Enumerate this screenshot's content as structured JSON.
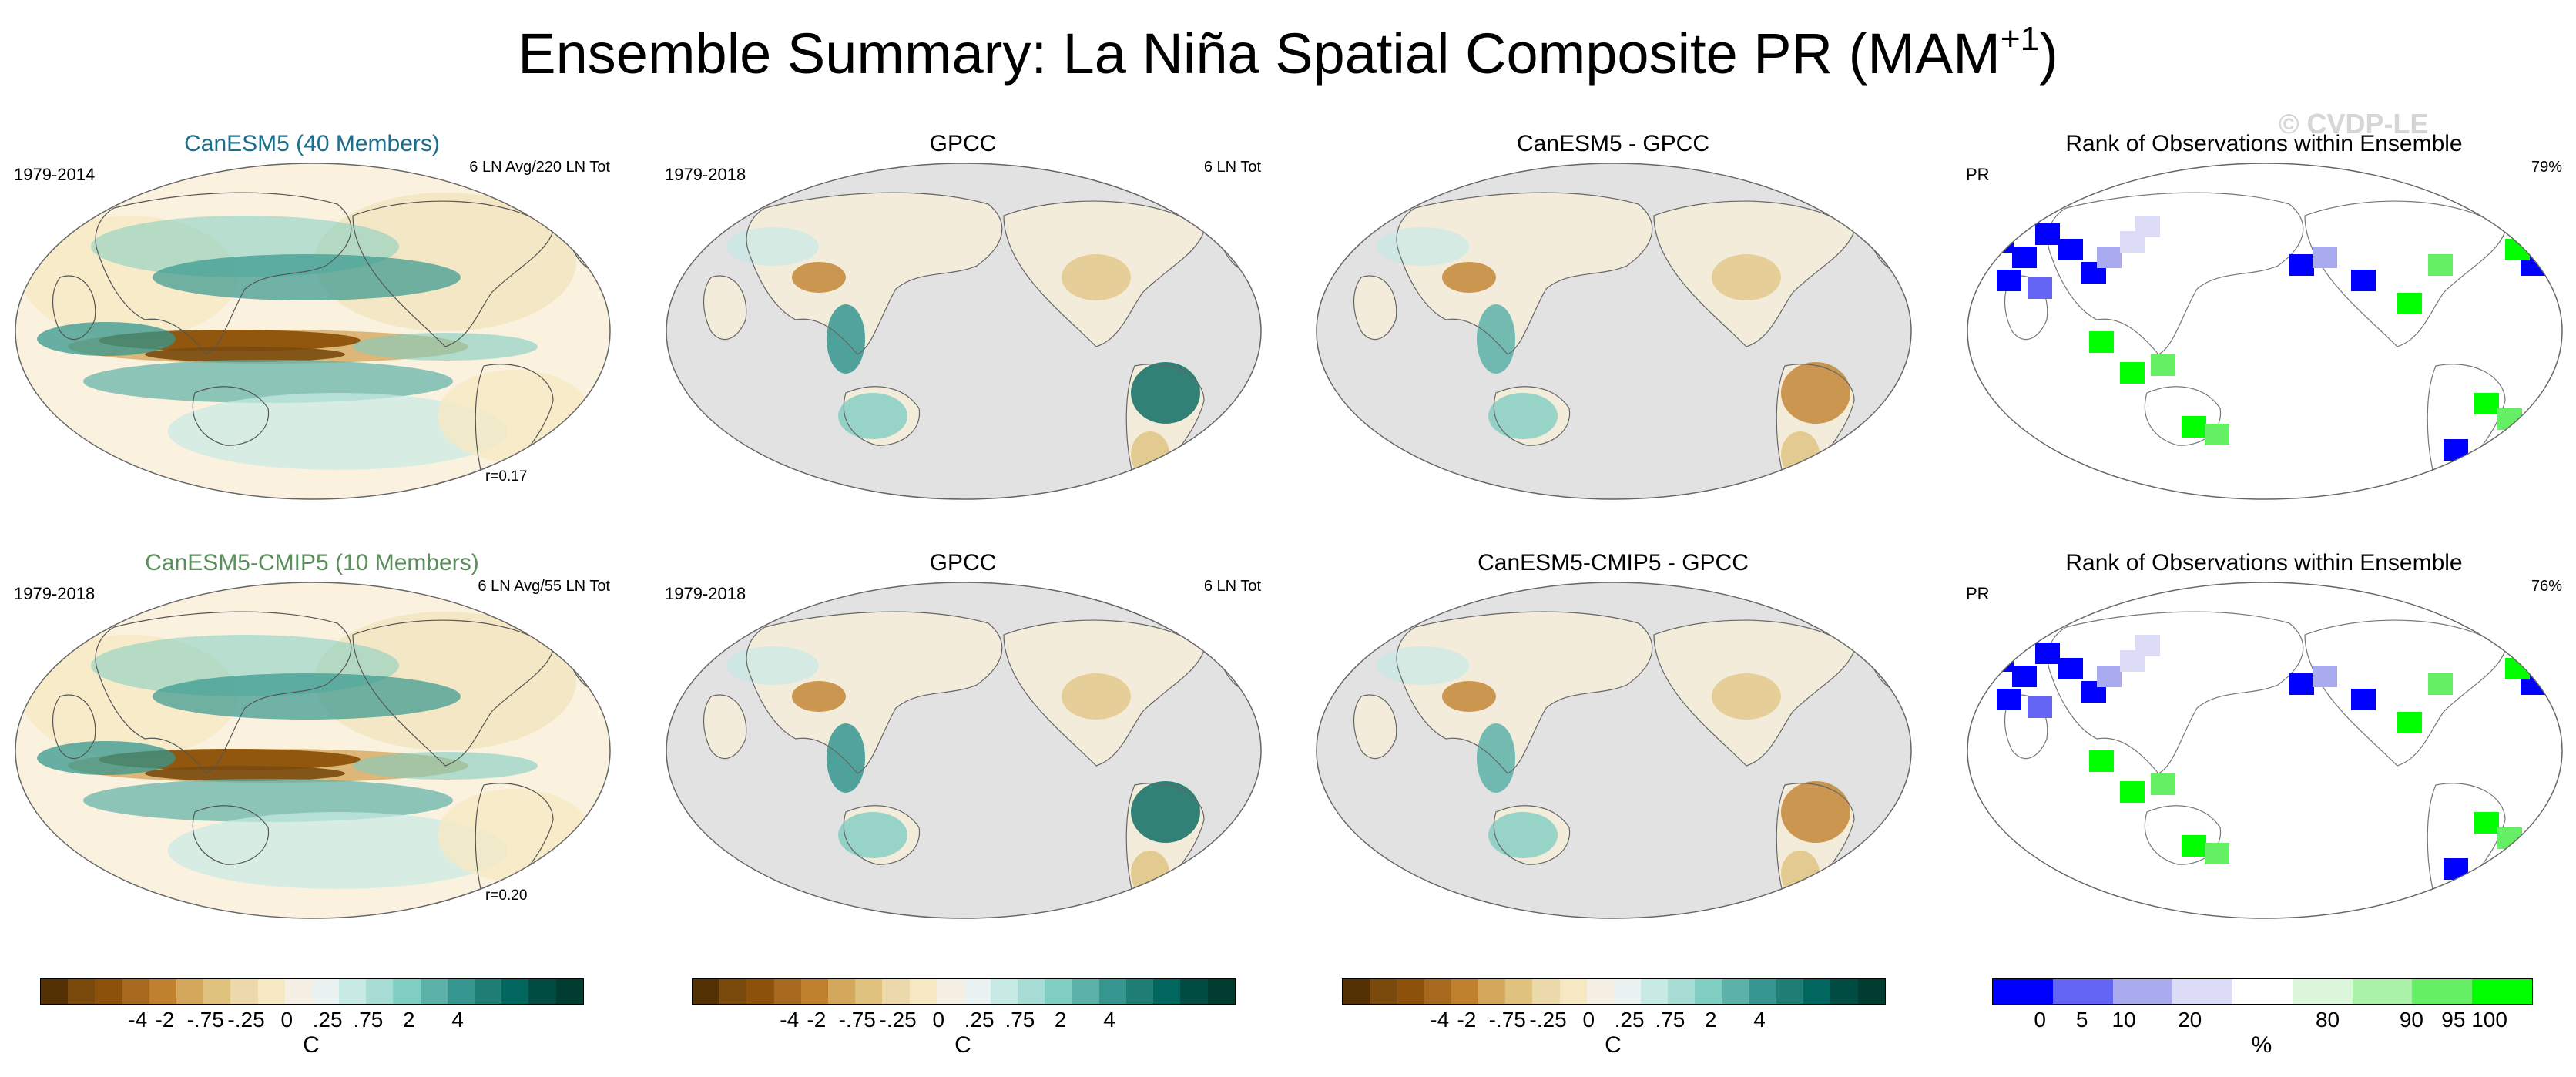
{
  "page": {
    "title": "Ensemble Summary: La Niña Spatial Composite PR (MAM",
    "title_superscript": "+1",
    "title_close": ")",
    "watermark": "© CVDP-LE"
  },
  "colors": {
    "land_grey": "#e2e2e2",
    "model_title_top": "#1a6e8e",
    "model_title_bottom": "#5a8e5a"
  },
  "panels": [
    {
      "id": "r1c1",
      "title": "CanESM5 (40 Members)",
      "title_color": "#1a6e8e",
      "left_label": "1979-2014",
      "right_label": "6 LN Avg/220 LN Tot",
      "corr": "r=0.17",
      "style": "model"
    },
    {
      "id": "r1c2",
      "title": "GPCC",
      "title_color": "#000000",
      "left_label": "1979-2018",
      "right_label": "6 LN Tot",
      "corr": "",
      "style": "obs"
    },
    {
      "id": "r1c3",
      "title": "CanESM5 - GPCC",
      "title_color": "#000000",
      "left_label": "",
      "right_label": "",
      "corr": "",
      "style": "diff"
    },
    {
      "id": "r1c4",
      "title": "Rank of Observations within Ensemble",
      "title_color": "#000000",
      "left_label": "PR",
      "right_label": "79%",
      "corr": "",
      "style": "rank"
    },
    {
      "id": "r2c1",
      "title": "CanESM5-CMIP5 (10 Members)",
      "title_color": "#5a8e5a",
      "left_label": "1979-2018",
      "right_label": "6 LN Avg/55 LN Tot",
      "corr": "r=0.20",
      "style": "model"
    },
    {
      "id": "r2c2",
      "title": "GPCC",
      "title_color": "#000000",
      "left_label": "1979-2018",
      "right_label": "6 LN Tot",
      "corr": "",
      "style": "obs"
    },
    {
      "id": "r2c3",
      "title": "CanESM5-CMIP5 - GPCC",
      "title_color": "#000000",
      "left_label": "",
      "right_label": "",
      "corr": "",
      "style": "diff"
    },
    {
      "id": "r2c4",
      "title": "Rank of Observations within Ensemble",
      "title_color": "#000000",
      "left_label": "PR",
      "right_label": "76%",
      "corr": "",
      "style": "rank"
    }
  ],
  "chart_data": [
    {
      "type": "heatmap",
      "name": "brbg-colorbar",
      "levels": [
        "-4",
        "-2",
        "-.75",
        "-.25",
        "0",
        ".25",
        ".75",
        "2",
        "4"
      ],
      "unit": "C",
      "colors": [
        "#543005",
        "#7a4a0d",
        "#8c510a",
        "#a6691d",
        "#bf812d",
        "#d4a85c",
        "#dfc27d",
        "#ecd9ab",
        "#f6e8c3",
        "#f5f0e3",
        "#eaf3f2",
        "#c7eae5",
        "#a6dcd3",
        "#80cdc1",
        "#5cb2a8",
        "#35978f",
        "#1f7f77",
        "#01665e",
        "#014d44",
        "#003c30"
      ]
    },
    {
      "type": "heatmap",
      "name": "rank-colorbar",
      "levels": [
        "0",
        "5",
        "10",
        "20",
        "80",
        "90",
        "95",
        "100"
      ],
      "unit": "%",
      "colors": [
        "#0000ff",
        "#6464f5",
        "#aaaaee",
        "#dcdcf7",
        "#ffffff",
        "#dcf7dc",
        "#aaf2aa",
        "#64ef64",
        "#00ff00"
      ]
    }
  ]
}
